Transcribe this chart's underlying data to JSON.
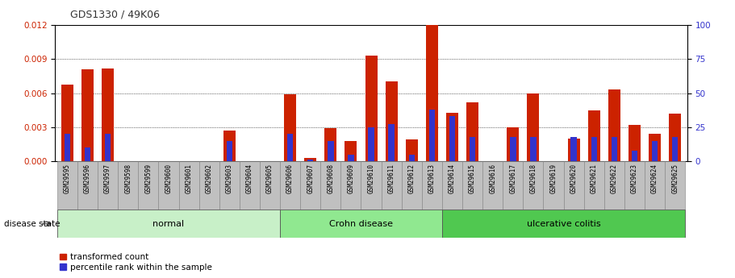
{
  "title": "GDS1330 / 49K06",
  "samples": [
    "GSM29595",
    "GSM29596",
    "GSM29597",
    "GSM29598",
    "GSM29599",
    "GSM29600",
    "GSM29601",
    "GSM29602",
    "GSM29603",
    "GSM29604",
    "GSM29605",
    "GSM29606",
    "GSM29607",
    "GSM29608",
    "GSM29609",
    "GSM29610",
    "GSM29611",
    "GSM29612",
    "GSM29613",
    "GSM29614",
    "GSM29615",
    "GSM29616",
    "GSM29617",
    "GSM29618",
    "GSM29619",
    "GSM29620",
    "GSM29621",
    "GSM29622",
    "GSM29623",
    "GSM29624",
    "GSM29625"
  ],
  "transformed_count": [
    0.00675,
    0.0081,
    0.0082,
    0.0,
    0.0,
    0.0,
    0.0,
    0.0,
    0.0027,
    0.0,
    0.0,
    0.0059,
    0.0003,
    0.0029,
    0.00175,
    0.0093,
    0.007,
    0.00195,
    0.0121,
    0.0043,
    0.0052,
    0.0,
    0.003,
    0.006,
    0.0,
    0.002,
    0.0045,
    0.0063,
    0.0032,
    0.0024,
    0.0042
  ],
  "percentile_rank": [
    20,
    10,
    20,
    0,
    0,
    0,
    0,
    0,
    15,
    0,
    0,
    20,
    1,
    15,
    5,
    25,
    27,
    5,
    38,
    33,
    18,
    0,
    18,
    18,
    0,
    18,
    18,
    18,
    8,
    15,
    18
  ],
  "groups": [
    {
      "label": "normal",
      "start": 0,
      "end": 10,
      "color": "#c8f0c8"
    },
    {
      "label": "Crohn disease",
      "start": 11,
      "end": 18,
      "color": "#90e890"
    },
    {
      "label": "ulcerative colitis",
      "start": 19,
      "end": 30,
      "color": "#50c850"
    }
  ],
  "ylim_left": [
    0,
    0.012
  ],
  "ylim_right": [
    0,
    100
  ],
  "yticks_left": [
    0,
    0.003,
    0.006,
    0.009,
    0.012
  ],
  "yticks_right": [
    0,
    25,
    50,
    75,
    100
  ],
  "bar_color_red": "#cc2200",
  "bar_color_blue": "#3333cc",
  "title_color": "#333333",
  "left_axis_color": "#cc2200",
  "right_axis_color": "#3333cc",
  "legend_red_label": "transformed count",
  "legend_blue_label": "percentile rank within the sample",
  "disease_state_label": "disease state",
  "tick_bg_color": "#c0c0c0",
  "tick_border_color": "#808080"
}
